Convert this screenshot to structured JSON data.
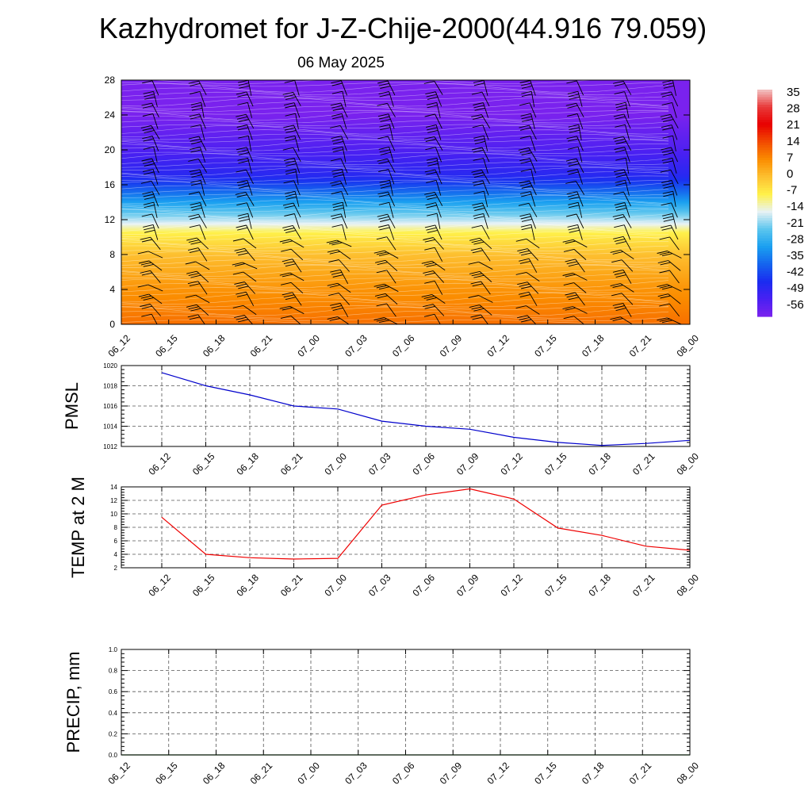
{
  "title": "Kazhydromet for J-Z-Chije-2000(44.916 79.059)",
  "subtitle": "06 May 2025",
  "time_labels": [
    "06_12",
    "06_15",
    "06_18",
    "06_21",
    "07_00",
    "07_03",
    "07_06",
    "07_09",
    "07_12",
    "07_15",
    "07_18",
    "07_21",
    "08_00"
  ],
  "colorbar": {
    "labels": [
      "35",
      "28",
      "21",
      "14",
      "7",
      "0",
      "-7",
      "-14",
      "-21",
      "-28",
      "-35",
      "-42",
      "-49",
      "-56"
    ],
    "stops": [
      {
        "v": 35,
        "c": "#f2c4c4"
      },
      {
        "v": 28,
        "c": "#e83a3a"
      },
      {
        "v": 21,
        "c": "#e80000"
      },
      {
        "v": 14,
        "c": "#f24a00"
      },
      {
        "v": 7,
        "c": "#fb8c00"
      },
      {
        "v": 0,
        "c": "#fdc030"
      },
      {
        "v": -7,
        "c": "#fff14a"
      },
      {
        "v": -14,
        "c": "#e8f2f4"
      },
      {
        "v": -21,
        "c": "#5cc6ee"
      },
      {
        "v": -28,
        "c": "#1aa0f0"
      },
      {
        "v": -35,
        "c": "#1565ee"
      },
      {
        "v": -42,
        "c": "#1a2cf0"
      },
      {
        "v": -49,
        "c": "#4820f2"
      },
      {
        "v": -56,
        "c": "#7a22ee"
      }
    ]
  },
  "chart_data": [
    {
      "type": "heatmap",
      "title": "Kazhydromet for J-Z-Chije-2000(44.916 79.059)",
      "subtitle": "06 May 2025",
      "x": [
        "06_12",
        "06_15",
        "06_18",
        "06_21",
        "07_00",
        "07_03",
        "07_06",
        "07_09",
        "07_12",
        "07_15",
        "07_18",
        "07_21",
        "08_00"
      ],
      "yticks": [
        0,
        4,
        8,
        12,
        16,
        20,
        24,
        28
      ],
      "ylim": [
        0,
        28
      ],
      "profile": [
        {
          "h": 0,
          "t": 10
        },
        {
          "h": 4,
          "t": 6
        },
        {
          "h": 8,
          "t": 0
        },
        {
          "h": 10.5,
          "t": -7
        },
        {
          "h": 11.5,
          "t": -14
        },
        {
          "h": 14,
          "t": -28
        },
        {
          "h": 17,
          "t": -44
        },
        {
          "h": 20,
          "t": -50
        },
        {
          "h": 24,
          "t": -56
        },
        {
          "h": 28,
          "t": -58
        }
      ],
      "wind_barbs": true
    },
    {
      "type": "line",
      "ylabel": "PMSL",
      "x": [
        "06_12",
        "06_15",
        "06_18",
        "06_21",
        "07_00",
        "07_03",
        "07_06",
        "07_09",
        "07_12",
        "07_15",
        "07_18",
        "07_21",
        "08_00"
      ],
      "values": [
        1019.3,
        1018.0,
        1017.1,
        1016.0,
        1015.7,
        1014.5,
        1014.0,
        1013.7,
        1012.9,
        1012.4,
        1012.1,
        1012.3,
        1012.6
      ],
      "ylim": [
        1012,
        1020
      ],
      "yticks": [
        1012,
        1014,
        1016,
        1018,
        1020
      ],
      "color": "#0000cc",
      "grid": true
    },
    {
      "type": "line",
      "ylabel": "TEMP at 2 M",
      "x": [
        "06_12",
        "06_15",
        "06_18",
        "06_21",
        "07_00",
        "07_03",
        "07_06",
        "07_09",
        "07_12",
        "07_15",
        "07_18",
        "07_21",
        "08_00"
      ],
      "values": [
        9.5,
        4.0,
        3.5,
        3.3,
        3.4,
        11.3,
        12.8,
        13.7,
        12.2,
        7.9,
        6.8,
        5.2,
        4.6
      ],
      "ylim": [
        2,
        14
      ],
      "yticks": [
        2,
        4,
        6,
        8,
        10,
        12,
        14
      ],
      "color": "#ee0000",
      "grid": true
    },
    {
      "type": "line",
      "ylabel": "PRECIP, mm",
      "x": [
        "06_12",
        "06_15",
        "06_18",
        "06_21",
        "07_00",
        "07_03",
        "07_06",
        "07_09",
        "07_12",
        "07_15",
        "07_18",
        "07_21",
        "08_00"
      ],
      "values": [
        0,
        0,
        0,
        0,
        0,
        0,
        0,
        0,
        0,
        0,
        0,
        0,
        0
      ],
      "ylim": [
        0,
        1
      ],
      "yticks": [
        "0.0",
        "0.2",
        "0.4",
        "0.6",
        "0.8",
        "1.0"
      ],
      "color": "#006600",
      "grid": true
    }
  ]
}
